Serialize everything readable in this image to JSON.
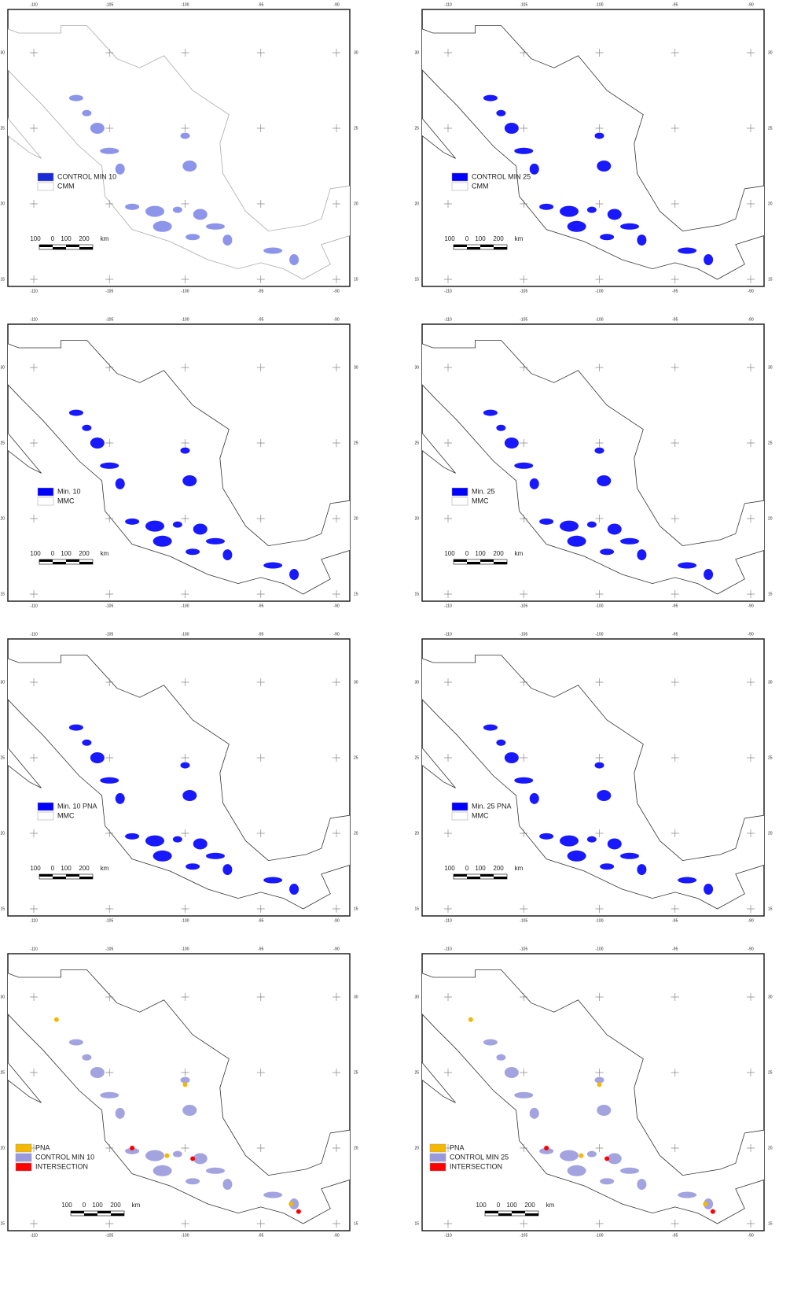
{
  "lon_ticks": [
    -110,
    -105,
    -100,
    -95,
    -90
  ],
  "lat_ticks": [
    30,
    25,
    20,
    15
  ],
  "scale_bar": [
    "100",
    "0",
    "100",
    "200",
    "km"
  ],
  "panels": [
    {
      "legend": [
        {
          "label": "CONTROL MIN 10",
          "color": "#1a2bd6"
        },
        {
          "label": "CMM",
          "color": "#ffffff"
        }
      ]
    },
    {
      "legend": [
        {
          "label": "CONTROL MIN 25",
          "color": "#0000ff"
        },
        {
          "label": "CMM",
          "color": "#ffffff"
        }
      ]
    },
    {
      "legend": [
        {
          "label": "Min. 10",
          "color": "#0000ff"
        },
        {
          "label": "MMC",
          "color": "#ffffff"
        }
      ]
    },
    {
      "legend": [
        {
          "label": "Min. 25",
          "color": "#0000ff"
        },
        {
          "label": "MMC",
          "color": "#ffffff"
        }
      ]
    },
    {
      "legend": [
        {
          "label": "Min. 10 PNA",
          "color": "#0000ff"
        },
        {
          "label": "MMC",
          "color": "#ffffff"
        }
      ]
    },
    {
      "legend": [
        {
          "label": "Min. 25 PNA",
          "color": "#0000ff"
        },
        {
          "label": "MMC",
          "color": "#ffffff"
        }
      ]
    },
    {
      "legend": [
        {
          "label": "PNA",
          "color": "#f5b800"
        },
        {
          "label": "CONTROL MIN 10",
          "color": "#9999dd"
        },
        {
          "label": "INTERSECTION",
          "color": "#ff0000"
        }
      ]
    },
    {
      "legend": [
        {
          "label": "PNA",
          "color": "#f5b800"
        },
        {
          "label": "CONTROL MIN 25",
          "color": "#9999dd"
        },
        {
          "label": "INTERSECTION",
          "color": "#ff0000"
        }
      ]
    }
  ]
}
